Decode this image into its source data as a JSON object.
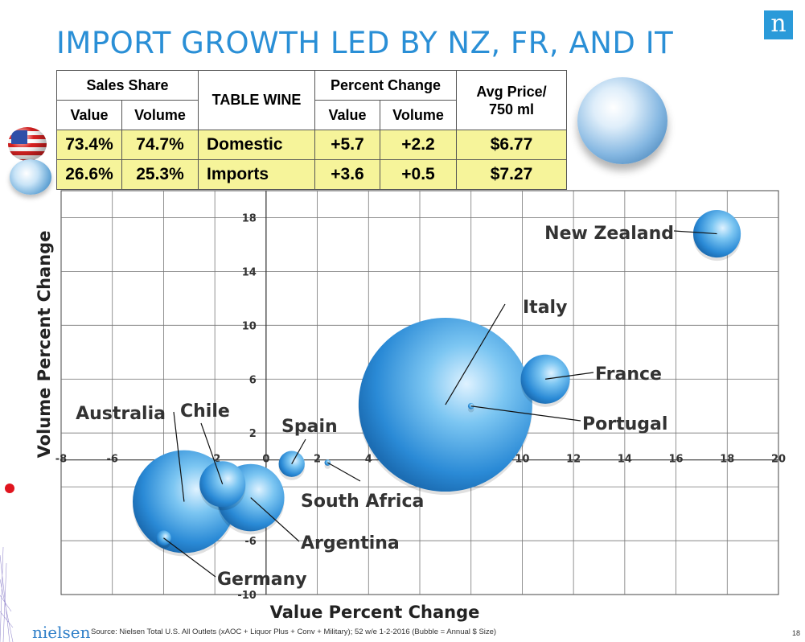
{
  "page": {
    "title": "IMPORT GROWTH LED BY NZ, FR, AND IT",
    "logo_letter": "n",
    "footer_brand": "nielsen",
    "source": "Source:  Nielsen Total U.S. All Outlets (xAOC + Liquor Plus + Conv + Military); 52 w/e  1-2-2016 (Bubble = Annual $ Size)",
    "page_number": "18"
  },
  "table": {
    "sales_share_header": "Sales Share",
    "table_wine_header": "TABLE WINE",
    "percent_change_header": "Percent Change",
    "avg_price_header_line1": "Avg Price/",
    "avg_price_header_line2": "750 ml",
    "value_label": "Value",
    "volume_label": "Volume",
    "rows": [
      {
        "icon": "us-flag-globe-icon",
        "share_value": "73.4%",
        "share_volume": "74.7%",
        "segment": "Domestic",
        "pc_value": "+5.7",
        "pc_volume": "+2.2",
        "avg_price": "$6.77"
      },
      {
        "icon": "world-globe-icon",
        "share_value": "26.6%",
        "share_volume": "25.3%",
        "segment": "Imports",
        "pc_value": "+3.6",
        "pc_volume": "+0.5",
        "avg_price": "$7.27"
      }
    ]
  },
  "chart_data": {
    "type": "scatter",
    "variant": "bubble",
    "xlabel": "Value Percent Change",
    "ylabel": "Volume Percent Change",
    "xlim": [
      -8,
      20
    ],
    "ylim": [
      -10,
      20
    ],
    "x_ticks": [
      "-8",
      "-6",
      "-4",
      "-2",
      "0",
      "2",
      "4",
      "6",
      "8",
      "10",
      "12",
      "14",
      "16",
      "18",
      "20"
    ],
    "y_ticks": [
      "18",
      "14",
      "10",
      "6",
      "2",
      "-2",
      "-6",
      "-10"
    ],
    "grid": true,
    "bubble_color": "#3a9fe0",
    "points": [
      {
        "name": "New Zealand",
        "x": 17.6,
        "y": 16.8,
        "size": 3
      },
      {
        "name": "Italy",
        "x": 7.0,
        "y": 4.1,
        "size": 40
      },
      {
        "name": "France",
        "x": 10.9,
        "y": 6.0,
        "size": 3.2
      },
      {
        "name": "Portugal",
        "x": 8.0,
        "y": 4.0,
        "size": 0.05
      },
      {
        "name": "Spain",
        "x": 1.0,
        "y": -0.3,
        "size": 0.9
      },
      {
        "name": "South Africa",
        "x": 2.4,
        "y": -0.2,
        "size": 0.05
      },
      {
        "name": "Australia",
        "x": -3.2,
        "y": -3.1,
        "size": 14
      },
      {
        "name": "Chile",
        "x": -1.7,
        "y": -1.8,
        "size": 2.8
      },
      {
        "name": "Argentina",
        "x": -0.6,
        "y": -2.8,
        "size": 6
      },
      {
        "name": "Germany",
        "x": -4.0,
        "y": -5.8,
        "size": 0.3
      }
    ]
  }
}
